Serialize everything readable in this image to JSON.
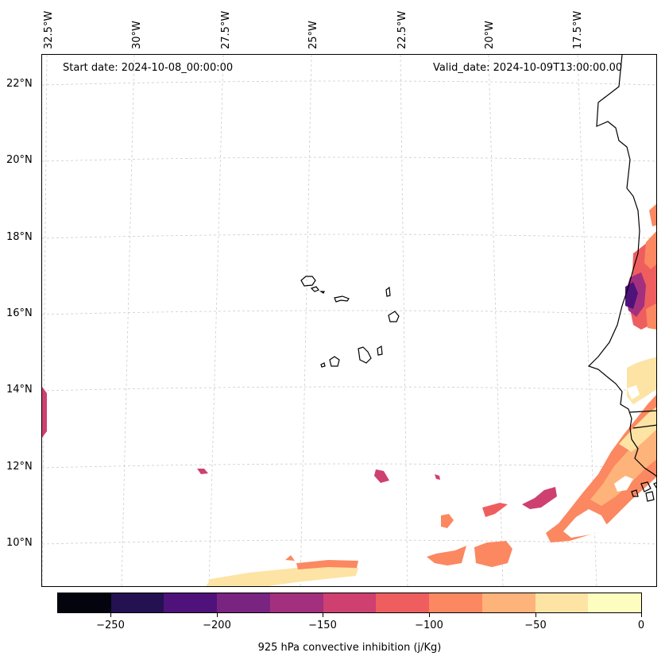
{
  "map": {
    "start_date": "Start date: 2024-10-08_00:00:00",
    "valid_date": "Valid_date: 2024-10-09T13:00:00.00",
    "lon_labels": [
      "32.5°W",
      "30°W",
      "27.5°W",
      "25°W",
      "22.5°W",
      "20°W",
      "17.5°W"
    ],
    "lat_labels": [
      "22°N",
      "20°N",
      "18°N",
      "16°N",
      "14°N",
      "12°N",
      "10°N"
    ],
    "field": "925 hPa convective inhibition",
    "colors": {
      "coast": "#000000",
      "grid": "#cccccc"
    }
  },
  "colorbar": {
    "title": "925 hPa convective inhibition (j/Kg)",
    "ticks": [
      "−250",
      "−200",
      "−150",
      "−100",
      "−50",
      "0"
    ],
    "colors": [
      "#04040e",
      "#231151",
      "#4f127b",
      "#7a2482",
      "#a3307e",
      "#ce4070",
      "#ef5e5e",
      "#fb8861",
      "#feb37b",
      "#fde4a5",
      "#fcfdbf"
    ]
  }
}
